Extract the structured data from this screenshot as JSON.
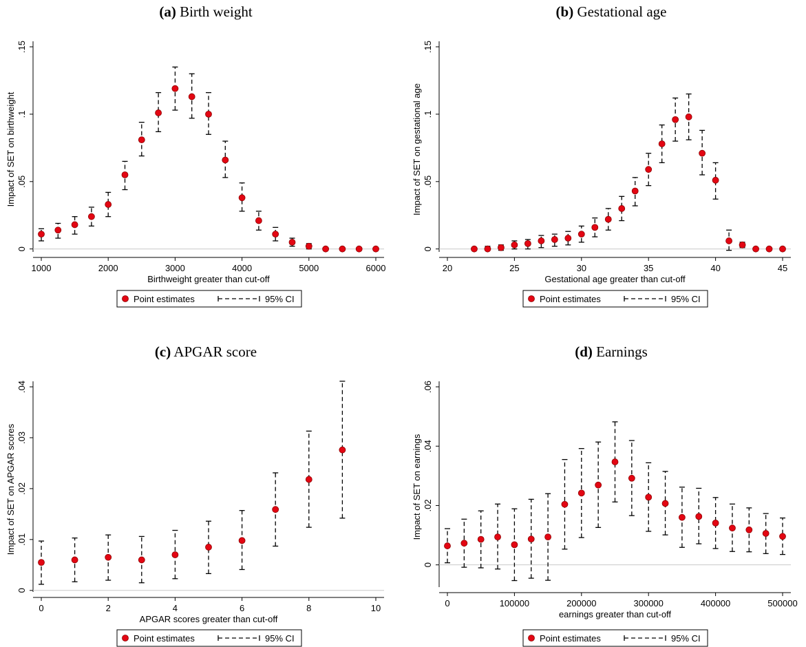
{
  "legend": {
    "point_label": "Point estimates",
    "ci_label": "95% CI"
  },
  "colors": {
    "marker": "#e30613",
    "marker_edge": "#8b0000",
    "ci": "#000000",
    "zero_line": "#c8c8c8"
  },
  "chart_data": [
    {
      "type": "scatter",
      "panel_tag": "(a)",
      "title": "Birth weight",
      "xlabel": "Birthweight greater than cut-off",
      "ylabel": "Impact of SET on birthweight",
      "xlim": [
        1000,
        6000
      ],
      "ylim": [
        0,
        0.15
      ],
      "xticks": [
        1000,
        2000,
        3000,
        4000,
        5000,
        6000
      ],
      "yticks": [
        0,
        0.05,
        0.1,
        0.15
      ],
      "ytick_labels": [
        "0",
        ".05",
        ".1",
        ".15"
      ],
      "grid": false,
      "legend_position": "bottom",
      "x": [
        1000,
        1250,
        1500,
        1750,
        2000,
        2250,
        2500,
        2750,
        3000,
        3250,
        3500,
        3750,
        4000,
        4250,
        4500,
        4750,
        5000,
        5250,
        5500,
        5750,
        6000
      ],
      "y": [
        0.011,
        0.014,
        0.018,
        0.024,
        0.033,
        0.055,
        0.081,
        0.101,
        0.119,
        0.113,
        0.1,
        0.066,
        0.038,
        0.021,
        0.011,
        0.005,
        0.002,
        0.0,
        0.0,
        0.0,
        0.0
      ],
      "ci_low": [
        0.006,
        0.008,
        0.011,
        0.017,
        0.024,
        0.044,
        0.069,
        0.087,
        0.103,
        0.097,
        0.085,
        0.053,
        0.028,
        0.014,
        0.006,
        0.002,
        0.0,
        -0.001,
        -0.001,
        -0.001,
        -0.001
      ],
      "ci_high": [
        0.015,
        0.019,
        0.024,
        0.031,
        0.042,
        0.065,
        0.094,
        0.116,
        0.135,
        0.13,
        0.116,
        0.08,
        0.049,
        0.028,
        0.016,
        0.008,
        0.004,
        0.001,
        0.001,
        0.001,
        0.001
      ]
    },
    {
      "type": "scatter",
      "panel_tag": "(b)",
      "title": "Gestational age",
      "xlabel": "Gestational age greater than cut-off",
      "ylabel": "Impact of SET on gestational age",
      "xlim": [
        20,
        45
      ],
      "ylim": [
        0,
        0.15
      ],
      "xticks": [
        20,
        25,
        30,
        35,
        40,
        45
      ],
      "yticks": [
        0,
        0.05,
        0.1,
        0.15
      ],
      "ytick_labels": [
        "0",
        ".05",
        ".1",
        ".15"
      ],
      "grid": false,
      "legend_position": "bottom",
      "x": [
        22,
        23,
        24,
        25,
        26,
        27,
        28,
        29,
        30,
        31,
        32,
        33,
        34,
        35,
        36,
        37,
        38,
        39,
        40,
        41,
        42,
        43,
        44,
        45
      ],
      "y": [
        0.0,
        0.0,
        0.001,
        0.003,
        0.004,
        0.006,
        0.007,
        0.008,
        0.011,
        0.016,
        0.022,
        0.03,
        0.043,
        0.059,
        0.078,
        0.096,
        0.098,
        0.071,
        0.051,
        0.006,
        0.003,
        0.0,
        0.0,
        0.0
      ],
      "ci_low": [
        -0.001,
        -0.001,
        -0.001,
        0.0,
        0.0,
        0.001,
        0.002,
        0.003,
        0.005,
        0.009,
        0.014,
        0.021,
        0.032,
        0.047,
        0.064,
        0.08,
        0.081,
        0.055,
        0.037,
        -0.001,
        0.001,
        -0.001,
        -0.001,
        -0.001
      ],
      "ci_high": [
        0.001,
        0.002,
        0.003,
        0.006,
        0.007,
        0.01,
        0.011,
        0.013,
        0.017,
        0.023,
        0.03,
        0.039,
        0.053,
        0.071,
        0.092,
        0.112,
        0.115,
        0.088,
        0.064,
        0.014,
        0.005,
        0.001,
        0.001,
        0.001
      ]
    },
    {
      "type": "scatter",
      "panel_tag": "(c)",
      "title": "APGAR score",
      "xlabel": "APGAR scores greater than cut-off",
      "ylabel": "Impact of SET on APGAR scores",
      "xlim": [
        0,
        10
      ],
      "ylim": [
        0,
        0.04
      ],
      "xticks": [
        0,
        2,
        4,
        6,
        8,
        10
      ],
      "yticks": [
        0,
        0.01,
        0.02,
        0.03,
        0.04
      ],
      "ytick_labels": [
        "0",
        ".01",
        ".02",
        ".03",
        ".04"
      ],
      "grid": false,
      "legend_position": "bottom",
      "x": [
        0,
        1,
        2,
        3,
        4,
        5,
        6,
        7,
        8,
        9
      ],
      "y": [
        0.0055,
        0.006,
        0.0065,
        0.006,
        0.007,
        0.0085,
        0.0098,
        0.0159,
        0.0218,
        0.0276
      ],
      "ci_low": [
        0.0012,
        0.0017,
        0.002,
        0.0015,
        0.0023,
        0.0033,
        0.0041,
        0.0087,
        0.0124,
        0.0142
      ],
      "ci_high": [
        0.0097,
        0.0103,
        0.0109,
        0.0106,
        0.0118,
        0.0136,
        0.0157,
        0.0231,
        0.0313,
        0.0411
      ]
    },
    {
      "type": "scatter",
      "panel_tag": "(d)",
      "title": "Earnings",
      "xlabel": "earnings greater than cut-off",
      "ylabel": "Impact of SET on earnings",
      "xlim": [
        0,
        500000
      ],
      "ylim": [
        0,
        0.06
      ],
      "xticks": [
        0,
        100000,
        200000,
        300000,
        400000,
        500000
      ],
      "yticks": [
        0,
        0.02,
        0.04,
        0.06
      ],
      "ytick_labels": [
        "0",
        ".02",
        ".04",
        ".06"
      ],
      "grid": false,
      "legend_position": "bottom",
      "x": [
        0,
        25000,
        50000,
        75000,
        100000,
        125000,
        150000,
        175000,
        200000,
        225000,
        250000,
        275000,
        300000,
        325000,
        350000,
        375000,
        400000,
        425000,
        450000,
        475000,
        500000
      ],
      "y": [
        0.0064,
        0.0073,
        0.0086,
        0.0094,
        0.0068,
        0.0087,
        0.0094,
        0.0204,
        0.0242,
        0.0269,
        0.0347,
        0.0292,
        0.0228,
        0.0207,
        0.016,
        0.0163,
        0.0141,
        0.0124,
        0.0118,
        0.0106,
        0.0096
      ],
      "ci_low": [
        0.0007,
        -0.0008,
        -0.001,
        -0.0014,
        -0.0053,
        -0.0045,
        -0.0052,
        0.0053,
        0.0092,
        0.0126,
        0.0212,
        0.0166,
        0.0113,
        0.0101,
        0.0059,
        0.0071,
        0.0055,
        0.0045,
        0.0044,
        0.0038,
        0.0035
      ],
      "ci_high": [
        0.0122,
        0.0154,
        0.0182,
        0.0205,
        0.0189,
        0.0221,
        0.024,
        0.0355,
        0.0392,
        0.0414,
        0.0482,
        0.0419,
        0.0344,
        0.0315,
        0.0262,
        0.0258,
        0.0227,
        0.0205,
        0.0192,
        0.0173,
        0.0158
      ]
    }
  ]
}
